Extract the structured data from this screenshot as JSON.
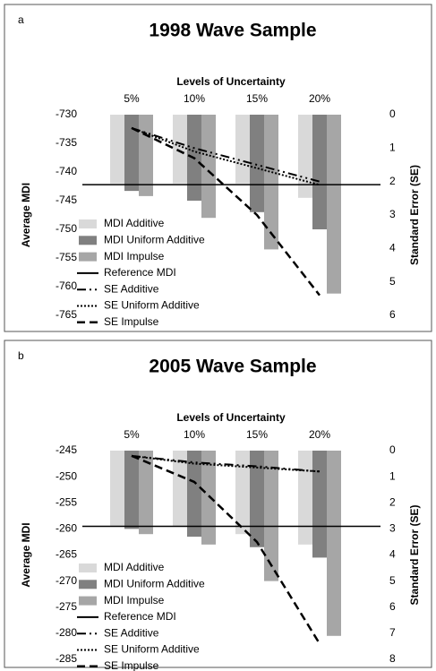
{
  "chart_data": [
    {
      "type": "bar",
      "panel_label": "a",
      "title": "1998 Wave Sample",
      "x_label": "Levels of Uncertainty",
      "ylabel": "Average MDI",
      "y2label": "Standard Error (SE)",
      "categories": [
        "5%",
        "10%",
        "15%",
        "20%"
      ],
      "ylim": [
        -730,
        -765
      ],
      "yticks": [
        -730,
        -735,
        -740,
        -745,
        -750,
        -755,
        -760,
        -765
      ],
      "y2lim": [
        0,
        6
      ],
      "y2ticks": [
        0,
        1,
        2,
        3,
        4,
        5,
        6
      ],
      "series": [
        {
          "name": "MDI Additive",
          "type": "bar",
          "color": "#d9d9d9",
          "values": [
            -742,
            -742,
            -742,
            -744.5
          ]
        },
        {
          "name": "MDI Uniform Additive",
          "type": "bar",
          "color": "#808080",
          "values": [
            -743.3,
            -745,
            -747,
            -750
          ]
        },
        {
          "name": "MDI Impulse",
          "type": "bar",
          "color": "#a6a6a6",
          "values": [
            -744.2,
            -748,
            -753.5,
            -761.2
          ]
        },
        {
          "name": "Reference MDI",
          "type": "hline",
          "color": "#000000",
          "value": -742.2
        },
        {
          "name": "SE Additive",
          "type": "line",
          "axis": "y2",
          "dash": "dashdot",
          "color": "#000000",
          "values": [
            0.4,
            1.0,
            1.5,
            2.0
          ]
        },
        {
          "name": "SE Uniform Additive",
          "type": "line",
          "axis": "y2",
          "dash": "dotted",
          "color": "#000000",
          "values": [
            0.4,
            1.1,
            1.6,
            2.1
          ]
        },
        {
          "name": "SE Impulse",
          "type": "line",
          "axis": "y2",
          "dash": "dashed",
          "color": "#000000",
          "values": [
            0.4,
            1.3,
            3.0,
            5.4
          ]
        }
      ]
    },
    {
      "type": "bar",
      "panel_label": "b",
      "title": "2005 Wave Sample",
      "x_label": "Levels of Uncertainty",
      "ylabel": "Average MDI",
      "y2label": "Standard Error (SE)",
      "categories": [
        "5%",
        "10%",
        "15%",
        "20%"
      ],
      "ylim": [
        -245,
        -285
      ],
      "yticks": [
        -245,
        -250,
        -255,
        -260,
        -265,
        -270,
        -275,
        -280,
        -285
      ],
      "y2lim": [
        0,
        8
      ],
      "y2ticks": [
        0,
        1,
        2,
        3,
        4,
        5,
        6,
        7,
        8
      ],
      "series": [
        {
          "name": "MDI Additive",
          "type": "bar",
          "color": "#d9d9d9",
          "values": [
            -259.5,
            -259.5,
            -261,
            -263
          ]
        },
        {
          "name": "MDI Uniform Additive",
          "type": "bar",
          "color": "#808080",
          "values": [
            -260,
            -261.5,
            -263.5,
            -265.5
          ]
        },
        {
          "name": "MDI Impulse",
          "type": "bar",
          "color": "#a6a6a6",
          "values": [
            -261,
            -263,
            -270,
            -280.5
          ]
        },
        {
          "name": "Reference MDI",
          "type": "hline",
          "color": "#000000",
          "value": -259.5
        },
        {
          "name": "SE Additive",
          "type": "line",
          "axis": "y2",
          "dash": "dashdot",
          "color": "#000000",
          "values": [
            0.2,
            0.45,
            0.6,
            0.8
          ]
        },
        {
          "name": "SE Uniform Additive",
          "type": "line",
          "axis": "y2",
          "dash": "dotted",
          "color": "#000000",
          "values": [
            0.2,
            0.5,
            0.65,
            0.8
          ]
        },
        {
          "name": "SE Impulse",
          "type": "line",
          "axis": "y2",
          "dash": "dashed",
          "color": "#000000",
          "values": [
            0.2,
            1.2,
            3.5,
            7.4
          ]
        }
      ]
    }
  ]
}
